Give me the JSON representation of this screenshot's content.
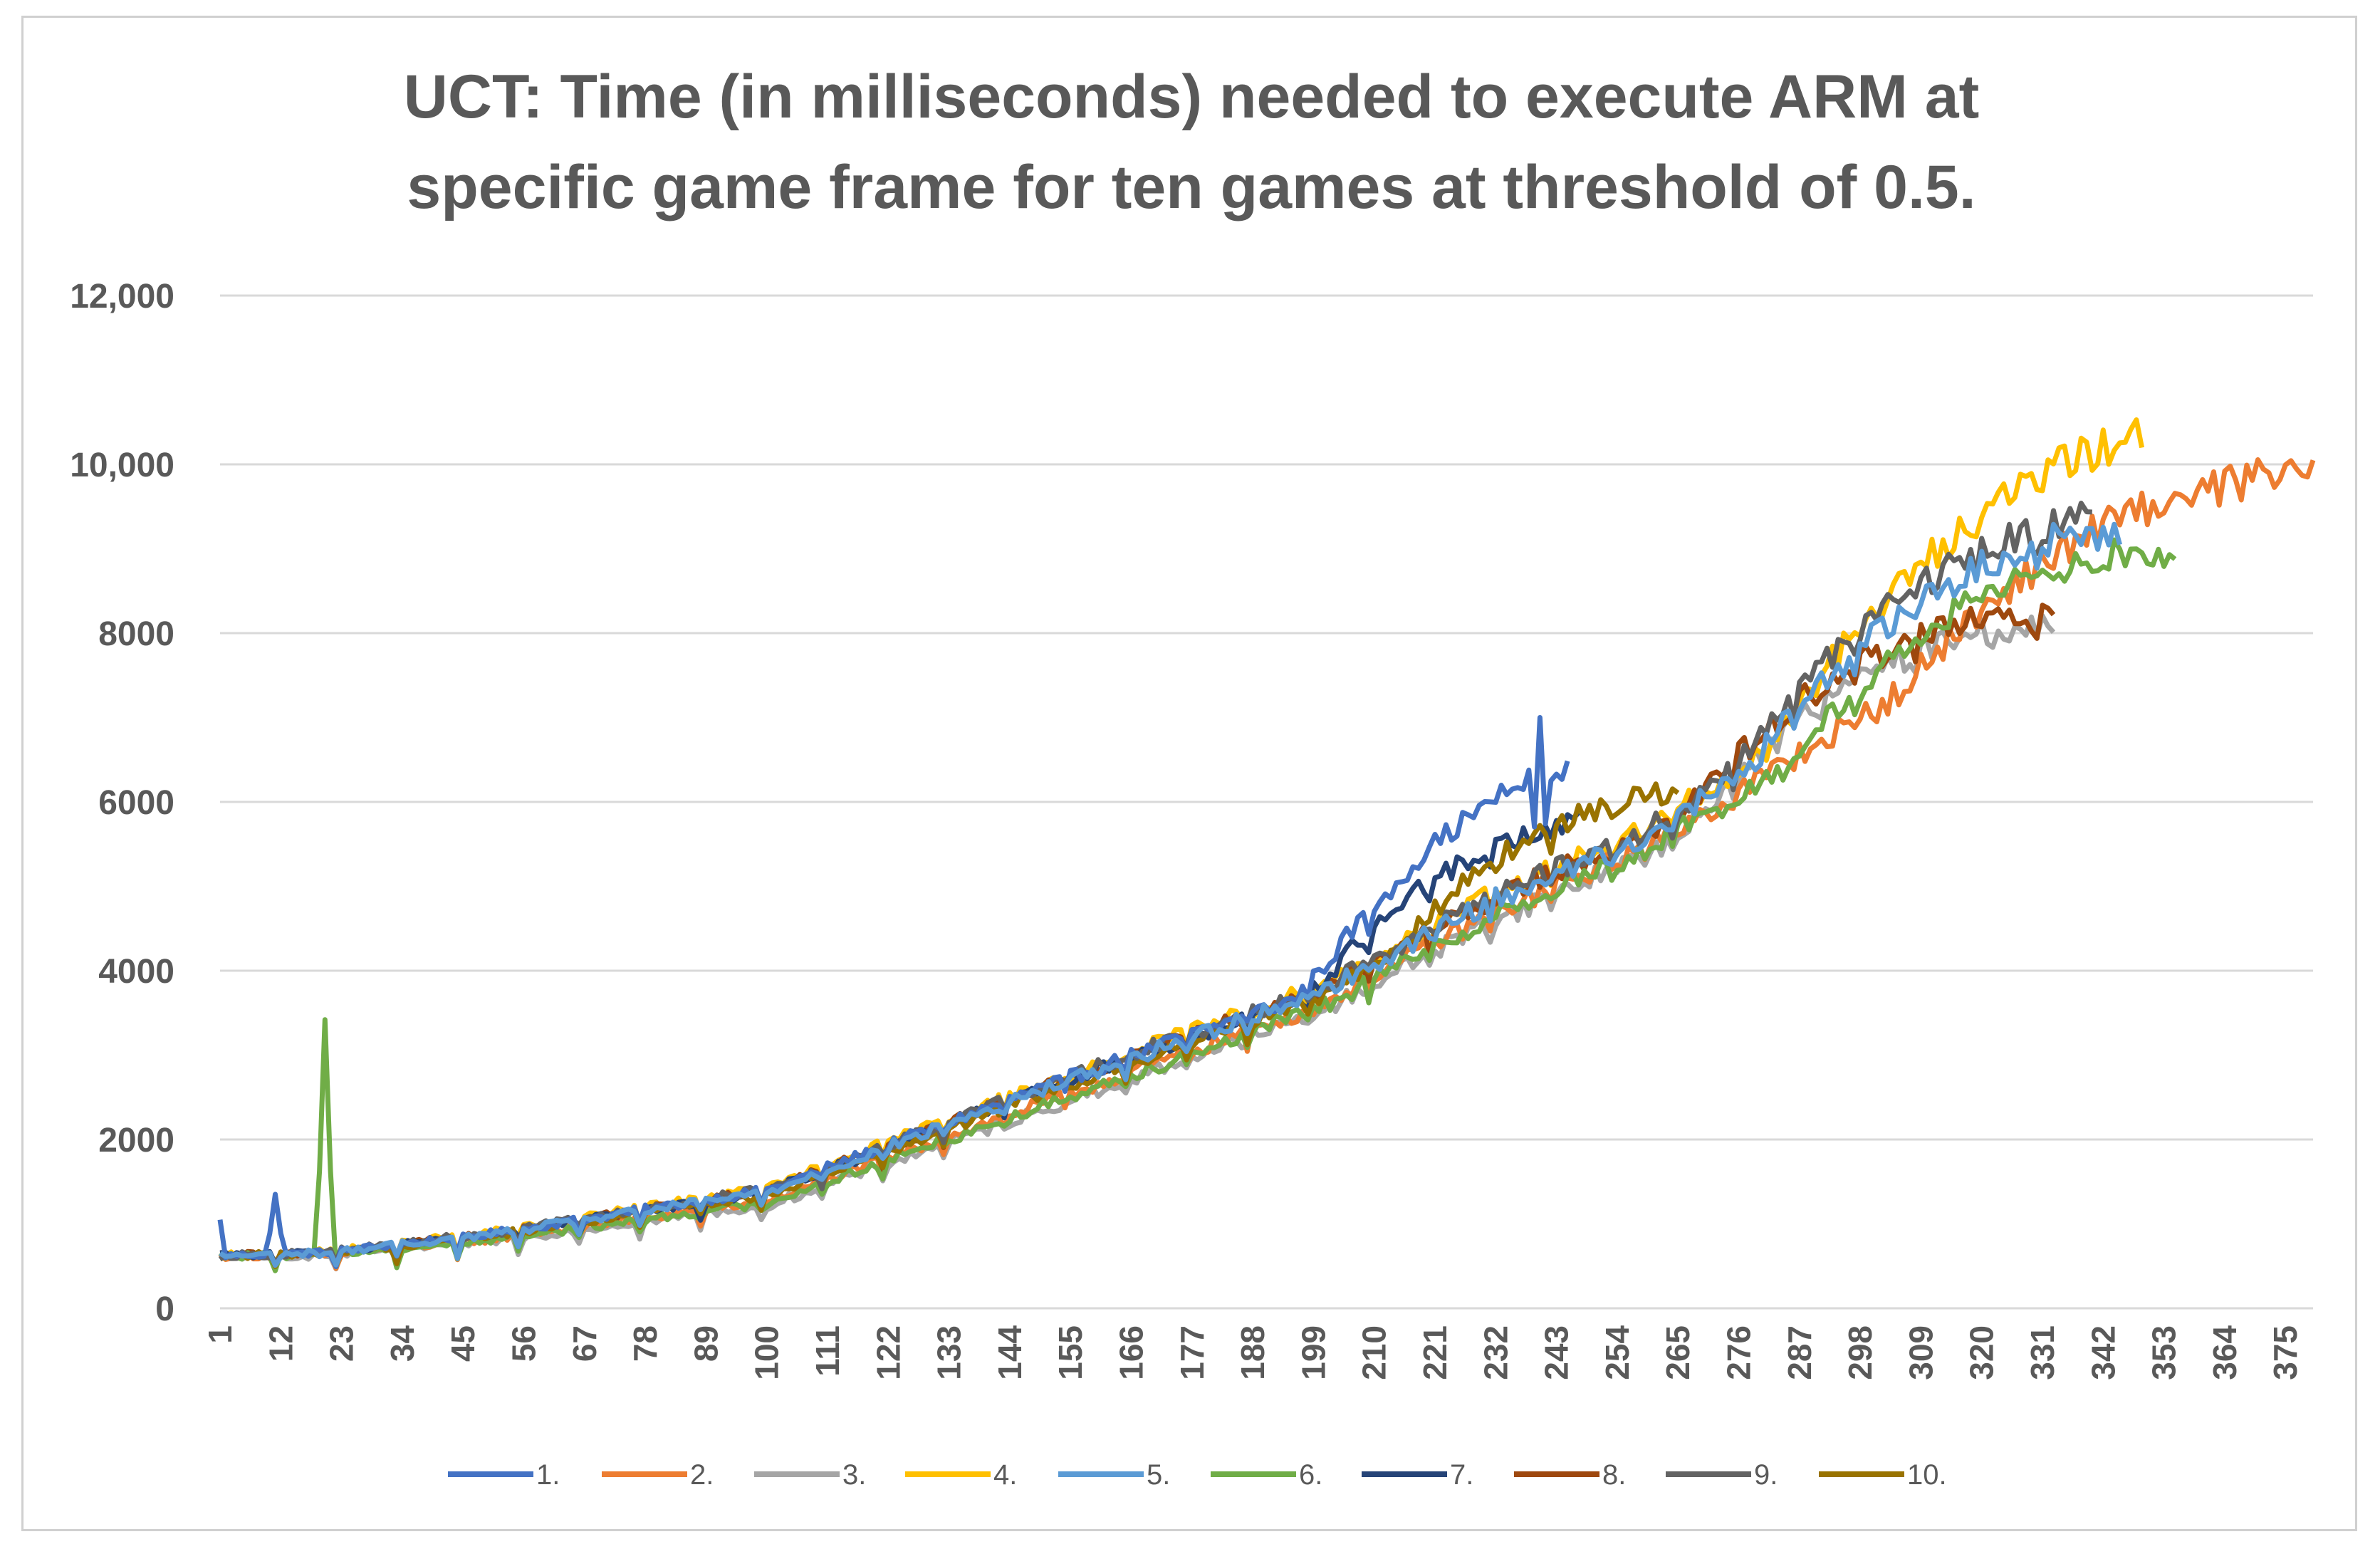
{
  "chart_data": {
    "type": "line",
    "title": "UCT: Time (in milliseconds) needed to execute ARM at specific game frame for ten games at threshold of 0.5.",
    "title_lines": [
      "UCT: Time (in milliseconds) needed to execute ARM at",
      "specific game frame for ten games at threshold of 0.5."
    ],
    "xlabel": "",
    "ylabel": "",
    "xlim": [
      1,
      380
    ],
    "ylim": [
      0,
      12000
    ],
    "y_ticks": [
      {
        "value": 0,
        "label": "0"
      },
      {
        "value": 2000,
        "label": "2000"
      },
      {
        "value": 4000,
        "label": "4000"
      },
      {
        "value": 6000,
        "label": "6000"
      },
      {
        "value": 8000,
        "label": "8000"
      },
      {
        "value": 10000,
        "label": "10,000"
      },
      {
        "value": 12000,
        "label": "12,000"
      }
    ],
    "x_ticks": [
      "1",
      "12",
      "23",
      "34",
      "45",
      "56",
      "67",
      "78",
      "89",
      "100",
      "111",
      "122",
      "133",
      "144",
      "155",
      "166",
      "177",
      "188",
      "199",
      "210",
      "221",
      "232",
      "243",
      "254",
      "265",
      "276",
      "287",
      "298",
      "309",
      "320",
      "331",
      "342",
      "353",
      "364",
      "375"
    ],
    "grid": "horizontal",
    "legend_position": "bottom",
    "trend": "time grows roughly quadratically with game frame: about 620 ms at frame 1, 1350 at 100, 3700 at 200, 5600 at 260, 8000 at 320 and 9800 at 380",
    "series": [
      {
        "name": "1.",
        "color": "#4472C4",
        "end_frame": 245,
        "end_value": 6450,
        "spikes": [
          {
            "frame": 1,
            "value": 1050
          },
          {
            "frame": 11,
            "value": 1350
          },
          {
            "frame": 240,
            "value": 7000
          }
        ]
      },
      {
        "name": "2.",
        "color": "#ED7D31",
        "end_frame": 380,
        "end_value": 9900,
        "spikes": []
      },
      {
        "name": "3.",
        "color": "#A5A5A5",
        "end_frame": 333,
        "end_value": 8050,
        "spikes": []
      },
      {
        "name": "4.",
        "color": "#FFC000",
        "end_frame": 349,
        "end_value": 10350,
        "spikes": []
      },
      {
        "name": "5.",
        "color": "#5B9BD5",
        "end_frame": 345,
        "end_value": 9250,
        "spikes": []
      },
      {
        "name": "6.",
        "color": "#70AD47",
        "end_frame": 355,
        "end_value": 9000,
        "spikes": [
          {
            "frame": 20,
            "value": 3420
          }
        ]
      },
      {
        "name": "7.",
        "color": "#264478",
        "end_frame": 247,
        "end_value": 5750,
        "spikes": []
      },
      {
        "name": "8.",
        "color": "#9E480E",
        "end_frame": 333,
        "end_value": 8150,
        "spikes": []
      },
      {
        "name": "9.",
        "color": "#636363",
        "end_frame": 340,
        "end_value": 9350,
        "spikes": []
      },
      {
        "name": "10.",
        "color": "#997300",
        "end_frame": 265,
        "end_value": 6150,
        "spikes": []
      }
    ]
  }
}
